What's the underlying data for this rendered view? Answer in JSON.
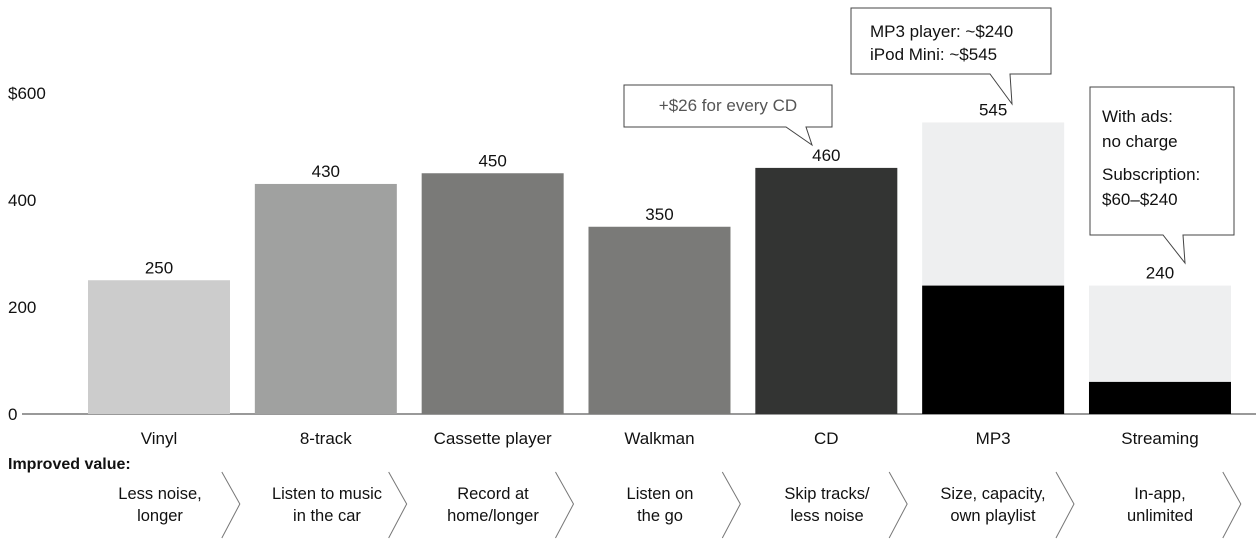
{
  "chart_data": {
    "type": "bar",
    "categories": [
      "Vinyl",
      "8-track",
      "Cassette player",
      "Walkman",
      "CD",
      "MP3",
      "Streaming"
    ],
    "series": [
      {
        "values": [
          250,
          430,
          450,
          350,
          460,
          240,
          60
        ]
      },
      {
        "values": [
          0,
          0,
          0,
          0,
          0,
          305,
          180
        ]
      }
    ],
    "totals": [
      250,
      430,
      450,
      350,
      460,
      545,
      240
    ],
    "total_labels": [
      "250",
      "430",
      "450",
      "350",
      "460",
      "545",
      "240"
    ],
    "bar_colors": [
      "#cccccc",
      "#a0a1a0",
      "#7a7a78",
      "#7a7a78",
      "#333433",
      "#000000",
      "#000000"
    ],
    "upper_color": "#eeeff0",
    "ylim": [
      0,
      600
    ],
    "yticks": [
      0,
      200,
      400,
      600
    ],
    "ytick_labels": [
      "0",
      "200",
      "400",
      "$600"
    ],
    "annotations": [
      {
        "category": "CD",
        "lines": [
          "+$26 for every CD"
        ],
        "text_color": "#555555"
      },
      {
        "category": "MP3",
        "lines": [
          "MP3 player: ~$240",
          "iPod Mini: ~$545"
        ],
        "text_color": "#111111"
      },
      {
        "category": "Streaming",
        "lines": [
          "With ads:",
          "no charge",
          "Subscription:",
          "$60–$240"
        ],
        "text_color": "#111111"
      }
    ]
  },
  "improved_value": {
    "title": "Improved value:",
    "items": [
      "Less noise,\nlonger",
      "Listen to music\nin the car",
      "Record at\nhome/longer",
      "Listen on\nthe go",
      "Skip tracks/\nless noise",
      "Size, capacity,\nown playlist",
      "In-app,\nunlimited"
    ]
  }
}
